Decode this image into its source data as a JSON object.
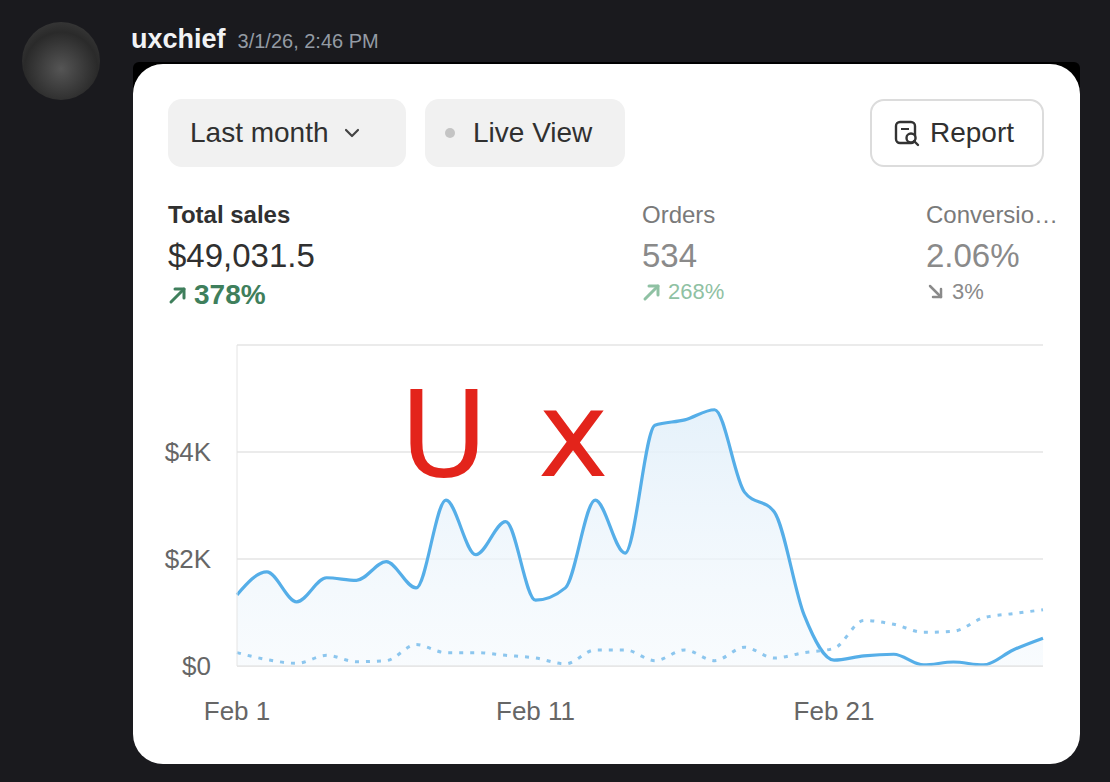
{
  "message": {
    "author": "uxchief",
    "timestamp": "3/1/26, 2:46 PM"
  },
  "controls": {
    "period": "Last month",
    "live": "Live View",
    "report": "Report"
  },
  "metrics": [
    {
      "label": "Total sales",
      "value": "$49,031.5",
      "change": "378%",
      "direction": "up"
    },
    {
      "label": "Orders",
      "value": "534",
      "change": "268%",
      "direction": "up"
    },
    {
      "label": "Conversio…",
      "value": "2.06%",
      "change": "3%",
      "direction": "down"
    }
  ],
  "chart_data": {
    "type": "area",
    "categories": [
      "Feb 1",
      null,
      null,
      null,
      null,
      null,
      null,
      null,
      null,
      null,
      "Feb 11",
      null,
      null,
      null,
      null,
      null,
      null,
      null,
      null,
      null,
      "Feb 21",
      null,
      null,
      null,
      null,
      null,
      null,
      null
    ],
    "series": [
      {
        "type": "area",
        "color": "#55aee8",
        "line_style": "solid",
        "values": [
          1330,
          1760,
          1200,
          1650,
          1600,
          1950,
          1460,
          3100,
          2080,
          2700,
          1230,
          1460,
          3100,
          2110,
          4500,
          4600,
          4790,
          3250,
          2880,
          950,
          110,
          190,
          220,
          20,
          75,
          20,
          300,
          520
        ]
      },
      {
        "type": "line",
        "color": "#8cc6ee",
        "line_style": "dotted",
        "values": [
          250,
          120,
          50,
          200,
          80,
          100,
          400,
          250,
          250,
          200,
          150,
          40,
          300,
          300,
          100,
          300,
          100,
          350,
          150,
          250,
          330,
          850,
          780,
          630,
          650,
          900,
          980,
          1050
        ]
      }
    ],
    "ylim": [
      0,
      6000
    ],
    "yticks": [
      {
        "value": 0,
        "label": "$0"
      },
      {
        "value": 2000,
        "label": "$2K"
      },
      {
        "value": 4000,
        "label": "$4K"
      }
    ],
    "grid": true,
    "annotations": [
      {
        "text": "Ux",
        "color": "#e3241b"
      }
    ]
  }
}
